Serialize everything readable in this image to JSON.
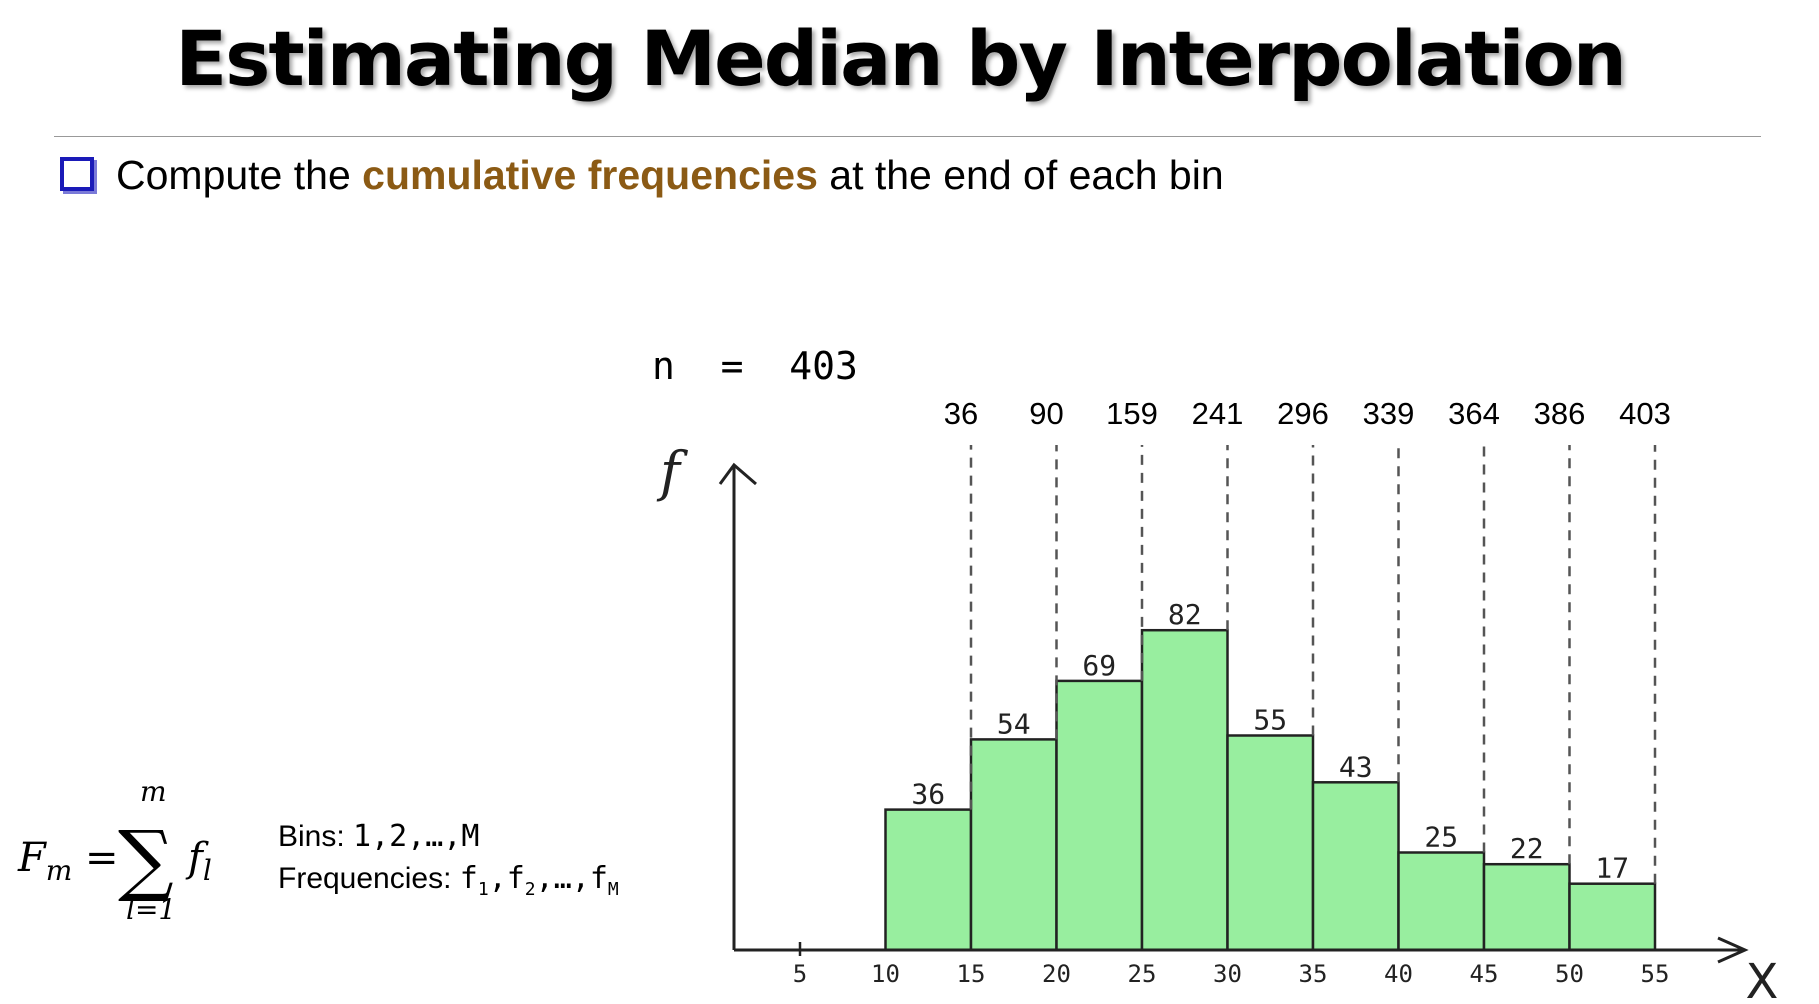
{
  "title": "Estimating Median by Interpolation",
  "bullet": {
    "prefix": "Compute the ",
    "highlight": "cumulative frequencies",
    "suffix": " at the end of each bin",
    "highlight_color": "#8b5a14",
    "bullet_color": "#1a1ab8"
  },
  "formula": {
    "lhs": "F",
    "lhs_sub": "m",
    "equals": "=",
    "sigma": "∑",
    "upper": "m",
    "lower": "l=1",
    "rhs": "f",
    "rhs_sub": "l"
  },
  "definitions": {
    "bins_label": "Bins: ",
    "bins_value": "1,2,…,M",
    "freq_label": "Frequencies: ",
    "freq_f1": "f",
    "freq_f1_sub": "1",
    "freq_f2": ",f",
    "freq_f2_sub": "2",
    "freq_dots": ",…,f",
    "freq_fm_sub": "M"
  },
  "n_label": "n  =  403",
  "chart_data": {
    "type": "bar",
    "ylabel": "f",
    "xlabel": "x",
    "x_ticks": [
      5,
      10,
      15,
      20,
      25,
      30,
      35,
      40,
      45,
      50,
      55
    ],
    "bins": [
      [
        10,
        15
      ],
      [
        15,
        20
      ],
      [
        20,
        25
      ],
      [
        25,
        30
      ],
      [
        30,
        35
      ],
      [
        35,
        40
      ],
      [
        40,
        45
      ],
      [
        45,
        50
      ],
      [
        50,
        55
      ]
    ],
    "frequencies": [
      36,
      54,
      69,
      82,
      55,
      43,
      25,
      22,
      17
    ],
    "cumulative_frequencies": [
      36,
      90,
      159,
      241,
      296,
      339,
      364,
      386,
      403
    ],
    "bar_color": "#98ee9f",
    "grid": false
  }
}
